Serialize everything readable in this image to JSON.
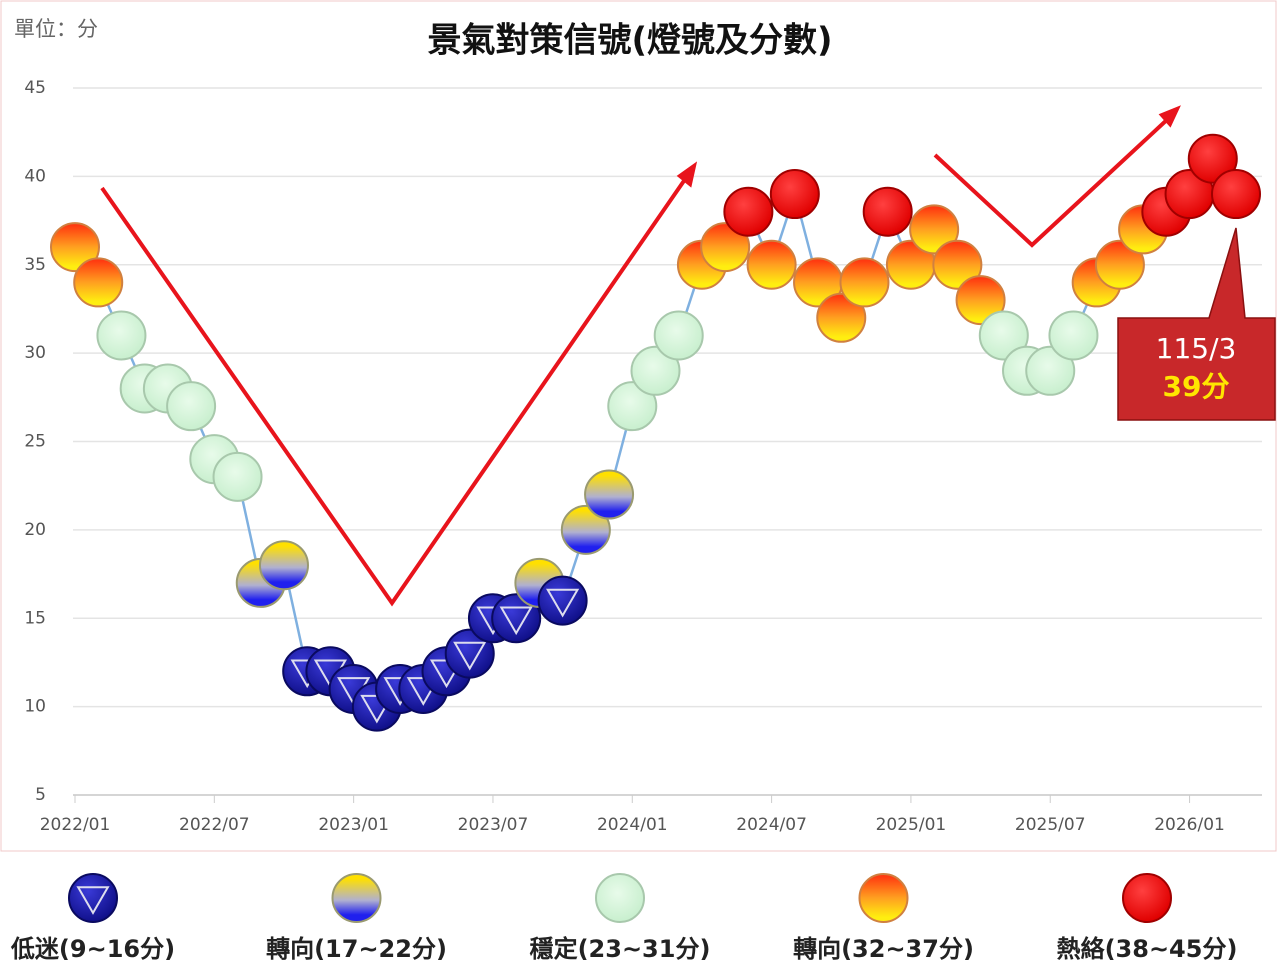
{
  "chart_data": {
    "type": "line",
    "title": "景氣對策信號(燈號及分數)",
    "unit_label": "單位：分",
    "x": [
      "2022-01",
      "2022-02",
      "2022-03",
      "2022-04",
      "2022-05",
      "2022-06",
      "2022-07",
      "2022-08",
      "2022-09",
      "2022-10",
      "2022-11",
      "2022-12",
      "2023-01",
      "2023-02",
      "2023-03",
      "2023-04",
      "2023-05",
      "2023-06",
      "2023-07",
      "2023-08",
      "2023-09",
      "2023-10",
      "2023-11",
      "2023-12",
      "2024-01",
      "2024-02",
      "2024-03",
      "2024-04",
      "2024-05",
      "2024-06",
      "2024-07",
      "2024-08",
      "2024-09",
      "2024-10",
      "2024-11",
      "2024-12",
      "2025-01",
      "2025-02",
      "2025-03",
      "2025-04",
      "2025-05",
      "2025-06",
      "2025-07",
      "2025-08",
      "2025-09",
      "2025-10",
      "2025-11",
      "2025-12",
      "2026-01",
      "2026-02",
      "2026-03"
    ],
    "series": [
      {
        "color": "#7fb0e0",
        "values": [
          36,
          34,
          31,
          28,
          28,
          27,
          24,
          23,
          17,
          18,
          12,
          12,
          11,
          10,
          11,
          11,
          12,
          13,
          15,
          15,
          17,
          16,
          20,
          22,
          27,
          29,
          31,
          35,
          36,
          38,
          35,
          39,
          34,
          32,
          34,
          38,
          35,
          37,
          35,
          33,
          31,
          29,
          29,
          31,
          34,
          35,
          37,
          38,
          39,
          41,
          39
        ]
      }
    ],
    "xticks": [
      {
        "value": "2022-01",
        "label": "2022/01"
      },
      {
        "value": "2022-07",
        "label": "2022/07"
      },
      {
        "value": "2023-01",
        "label": "2023/01"
      },
      {
        "value": "2023-07",
        "label": "2023/07"
      },
      {
        "value": "2024-01",
        "label": "2024/01"
      },
      {
        "value": "2024-07",
        "label": "2024/07"
      },
      {
        "value": "2025-01",
        "label": "2025/01"
      },
      {
        "value": "2025-07",
        "label": "2025/07"
      },
      {
        "value": "2026-01",
        "label": "2026/01"
      }
    ],
    "ylim": [
      5,
      45
    ],
    "yticks": [
      5,
      10,
      15,
      20,
      25,
      30,
      35,
      40,
      45
    ],
    "grid": true,
    "legend": [
      {
        "label": "低迷(9~16分)",
        "min": 9,
        "max": 16,
        "style": "blue"
      },
      {
        "label": "轉向(17~22分)",
        "min": 17,
        "max": 22,
        "style": "blueyellow"
      },
      {
        "label": "穩定(23~31分)",
        "min": 23,
        "max": 31,
        "style": "green"
      },
      {
        "label": "轉向(32~37分)",
        "min": 32,
        "max": 37,
        "style": "yellowred"
      },
      {
        "label": "熱絡(38~45分)",
        "min": 38,
        "max": 45,
        "style": "red"
      }
    ],
    "annotation": {
      "text": "115/3",
      "value": 39,
      "value_label": "39分"
    }
  }
}
